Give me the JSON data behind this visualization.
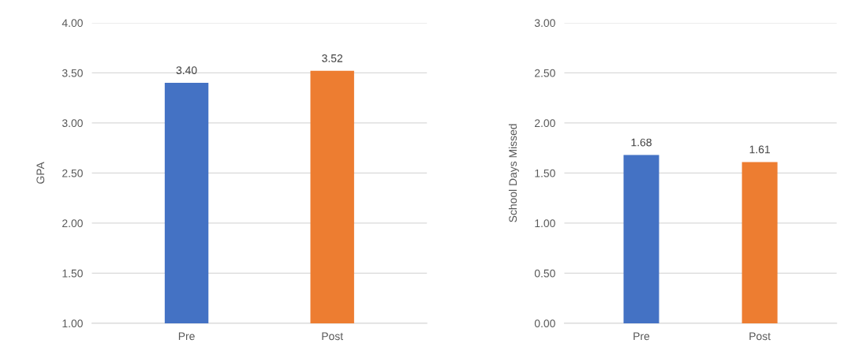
{
  "chart_data": [
    {
      "type": "bar",
      "ylabel": "GPA",
      "categories": [
        "Pre",
        "Post"
      ],
      "values": [
        3.4,
        3.52
      ],
      "value_labels": [
        "3.40",
        "3.52"
      ],
      "colors": [
        "#4472c4",
        "#ed7d31"
      ],
      "ylim": [
        1.0,
        4.0
      ],
      "yticks": [
        {
          "value": 1.0,
          "label": "1.00"
        },
        {
          "value": 1.5,
          "label": "1.50"
        },
        {
          "value": 2.0,
          "label": "2.00"
        },
        {
          "value": 2.5,
          "label": "2.50"
        },
        {
          "value": 3.0,
          "label": "3.00"
        },
        {
          "value": 3.5,
          "label": "3.50"
        },
        {
          "value": 4.0,
          "label": "4.00"
        }
      ],
      "grid": "y"
    },
    {
      "type": "bar",
      "ylabel": "School Days Missed",
      "categories": [
        "Pre",
        "Post"
      ],
      "values": [
        1.68,
        1.61
      ],
      "value_labels": [
        "1.68",
        "1.61"
      ],
      "colors": [
        "#4472c4",
        "#ed7d31"
      ],
      "ylim": [
        0.0,
        3.0
      ],
      "yticks": [
        {
          "value": 0.0,
          "label": "0.00"
        },
        {
          "value": 0.5,
          "label": "0.50"
        },
        {
          "value": 1.0,
          "label": "1.00"
        },
        {
          "value": 1.5,
          "label": "1.50"
        },
        {
          "value": 2.0,
          "label": "2.00"
        },
        {
          "value": 2.5,
          "label": "2.50"
        },
        {
          "value": 3.0,
          "label": "3.00"
        }
      ],
      "grid": "y"
    }
  ]
}
